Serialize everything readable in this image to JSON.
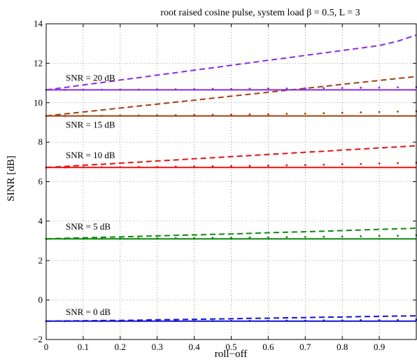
{
  "chart_data": {
    "type": "line",
    "title": "root raised cosine pulse, system load β = 0.5, L = 3",
    "xlabel": "roll−off",
    "ylabel": "SINR [dB]",
    "xlim": [
      0,
      1
    ],
    "ylim": [
      -2,
      14
    ],
    "xticks": [
      0,
      0.1,
      0.2,
      0.3,
      0.4,
      0.5,
      0.6,
      0.7,
      0.8,
      0.9
    ],
    "xtick_labels": [
      "0",
      "0.1",
      "0.2",
      "0.3",
      "0.4",
      "0.5",
      "0.6",
      "0.7",
      "0.8",
      "0.9"
    ],
    "yticks": [
      -2,
      0,
      2,
      4,
      6,
      8,
      10,
      12,
      14
    ],
    "ytick_labels": [
      "−2",
      "0",
      "2",
      "4",
      "6",
      "8",
      "10",
      "12",
      "14"
    ],
    "grid": true,
    "x": [
      0,
      0.05,
      0.1,
      0.15,
      0.2,
      0.25,
      0.3,
      0.35,
      0.4,
      0.45,
      0.5,
      0.55,
      0.6,
      0.65,
      0.7,
      0.75,
      0.8,
      0.85,
      0.9,
      0.95,
      1.0
    ],
    "groups": [
      {
        "label": "SNR = 0 dB",
        "color": "#1414d4",
        "solid": -1.07,
        "dashed": [
          -1.07,
          -1.06,
          -1.05,
          -1.04,
          -1.03,
          -1.02,
          -1.0,
          -0.99,
          -0.98,
          -0.96,
          -0.95,
          -0.93,
          -0.92,
          -0.9,
          -0.89,
          -0.87,
          -0.86,
          -0.84,
          -0.83,
          -0.81,
          -0.8
        ],
        "dotted": [
          -1.07,
          -1.07,
          -1.07,
          -1.07,
          -1.07,
          -1.07,
          -1.06,
          -1.06,
          -1.06,
          -1.06,
          -1.05,
          -1.05,
          -1.05,
          -1.04,
          -1.04,
          -1.03,
          -1.03,
          -1.02,
          -1.02,
          -1.01,
          -1.0
        ]
      },
      {
        "label": "SNR = 5 dB",
        "color": "#0a8a0a",
        "solid": 3.1,
        "dashed": [
          3.1,
          3.13,
          3.15,
          3.18,
          3.2,
          3.23,
          3.25,
          3.28,
          3.3,
          3.33,
          3.35,
          3.38,
          3.41,
          3.44,
          3.46,
          3.49,
          3.52,
          3.55,
          3.58,
          3.61,
          3.64
        ],
        "dotted": [
          3.1,
          3.1,
          3.11,
          3.11,
          3.12,
          3.12,
          3.13,
          3.14,
          3.14,
          3.15,
          3.16,
          3.17,
          3.18,
          3.19,
          3.2,
          3.21,
          3.22,
          3.23,
          3.25,
          3.26,
          3.28
        ]
      },
      {
        "label": "SNR = 10 dB",
        "color": "#e81010",
        "solid": 6.72,
        "dashed": [
          6.72,
          6.77,
          6.83,
          6.88,
          6.94,
          6.99,
          7.05,
          7.1,
          7.16,
          7.21,
          7.27,
          7.32,
          7.38,
          7.43,
          7.49,
          7.54,
          7.6,
          7.65,
          7.71,
          7.76,
          7.82
        ],
        "dotted": [
          6.72,
          6.72,
          6.73,
          6.73,
          6.74,
          6.74,
          6.75,
          6.76,
          6.77,
          6.78,
          6.79,
          6.8,
          6.81,
          6.83,
          6.84,
          6.86,
          6.88,
          6.9,
          6.92,
          6.94,
          6.96
        ]
      },
      {
        "label": "SNR = 15 dB",
        "color": "#a04010",
        "solid": 9.33,
        "dashed": [
          9.33,
          9.43,
          9.53,
          9.63,
          9.73,
          9.83,
          9.93,
          10.03,
          10.13,
          10.23,
          10.33,
          10.43,
          10.53,
          10.63,
          10.73,
          10.83,
          10.93,
          11.03,
          11.13,
          11.23,
          11.33
        ],
        "dotted": [
          9.33,
          9.33,
          9.34,
          9.34,
          9.35,
          9.35,
          9.36,
          9.37,
          9.38,
          9.39,
          9.4,
          9.41,
          9.42,
          9.44,
          9.45,
          9.47,
          9.49,
          9.51,
          9.53,
          9.55,
          9.57
        ]
      },
      {
        "label": "SNR = 20 dB",
        "color": "#8a2be2",
        "solid": 10.65,
        "dashed": [
          10.65,
          10.77,
          10.9,
          11.02,
          11.15,
          11.27,
          11.4,
          11.52,
          11.65,
          11.77,
          11.9,
          12.02,
          12.15,
          12.27,
          12.4,
          12.52,
          12.65,
          12.77,
          12.9,
          13.12,
          13.43
        ],
        "dotted": [
          10.65,
          10.65,
          10.66,
          10.66,
          10.67,
          10.67,
          10.68,
          10.68,
          10.69,
          10.7,
          10.7,
          10.71,
          10.72,
          10.72,
          10.73,
          10.74,
          10.75,
          10.76,
          10.77,
          10.78,
          10.79
        ]
      }
    ]
  }
}
